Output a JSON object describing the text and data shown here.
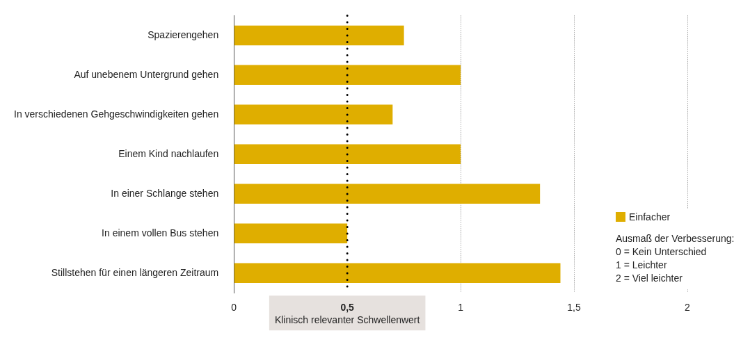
{
  "chart_data": {
    "type": "bar",
    "orientation": "horizontal",
    "categories": [
      "Spazierengehen",
      "Auf unebenem Untergrund gehen",
      "In verschiedenen Gehgeschwindigkeiten gehen",
      "Einem Kind nachlaufen",
      "In einer Schlange stehen",
      "In einem vollen Bus stehen",
      "Stillstehen für einen längeren Zeitraum"
    ],
    "series": [
      {
        "name": "Einfacher",
        "color": "#dfae00",
        "values": [
          0.75,
          1.0,
          0.7,
          1.0,
          1.35,
          0.5,
          1.44
        ]
      }
    ],
    "xlim": [
      0,
      2
    ],
    "xticks": [
      0,
      {
        "value": 0.5,
        "label": "0,5"
      },
      1,
      {
        "value": 1.5,
        "label": "1,5"
      },
      2
    ],
    "grid": "x",
    "legend": "right",
    "ref_lines": [
      {
        "axis": "x",
        "value": 0.5,
        "label": "Klinisch relevanter Schwellenwert",
        "color": "#000000",
        "line_style": "dotted"
      }
    ],
    "annotations": [
      "Ausmaß der Verbesserung:",
      "0 = Kein Unterschied",
      "1 = Leichter",
      "2 = Viel leichter"
    ]
  }
}
